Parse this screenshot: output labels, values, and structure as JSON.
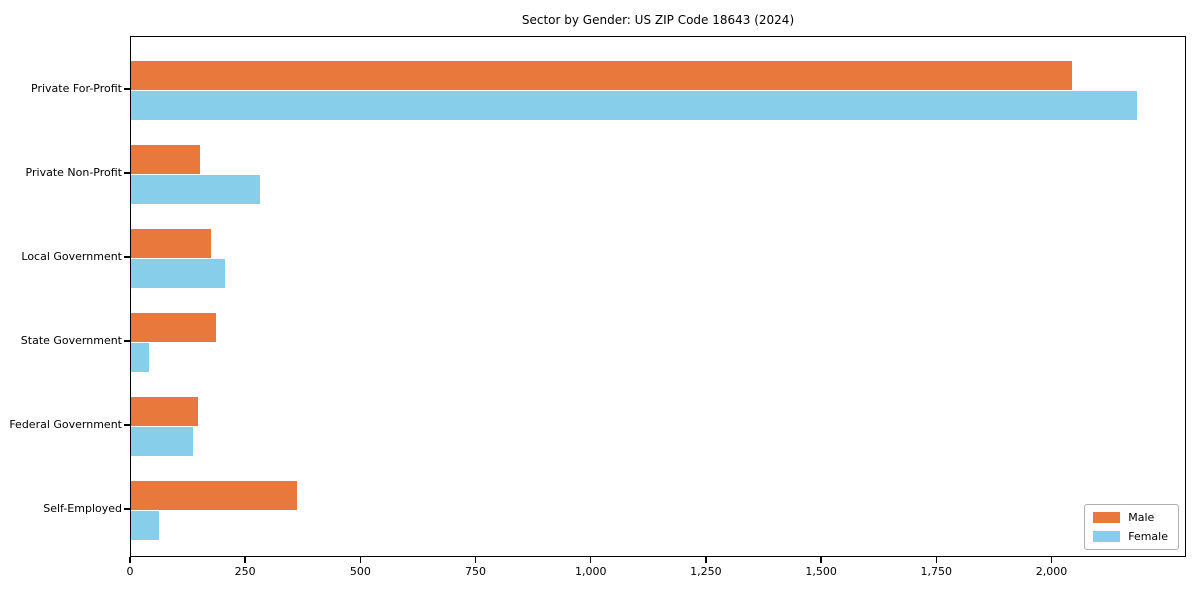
{
  "chart_data": {
    "type": "bar",
    "orientation": "horizontal",
    "title": "Sector by Gender: US ZIP Code 18643 (2024)",
    "categories": [
      "Private For-Profit",
      "Private Non-Profit",
      "Local Government",
      "State Government",
      "Federal Government",
      "Self-Employed"
    ],
    "series": [
      {
        "name": "Male",
        "color": "#e8783c",
        "values": [
          2043,
          150,
          174,
          185,
          145,
          360
        ]
      },
      {
        "name": "Female",
        "color": "#87ceeb",
        "values": [
          2183,
          280,
          205,
          40,
          135,
          60
        ]
      }
    ],
    "xlabel": "",
    "ylabel": "",
    "xlim": [
      0,
      2292
    ],
    "xticks": {
      "values": [
        0,
        250,
        500,
        750,
        1000,
        1250,
        1500,
        1750,
        2000
      ],
      "labels": [
        "0",
        "250",
        "500",
        "750",
        "1,000",
        "1,250",
        "1,500",
        "1,750",
        "2,000"
      ]
    },
    "grid": false,
    "legend": {
      "position": "lower right",
      "entries": [
        "Male",
        "Female"
      ]
    }
  }
}
